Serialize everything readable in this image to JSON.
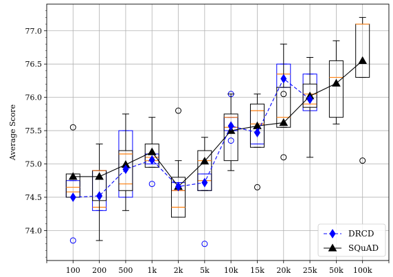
{
  "chart_data": {
    "type": "box",
    "categories": [
      "100",
      "200",
      "500",
      "1k",
      "2k",
      "5k",
      "10k",
      "15k",
      "20k",
      "25k",
      "50k",
      "100k"
    ],
    "ylabel": "Average Score",
    "xlabel": "",
    "ylim": [
      73.55,
      77.4
    ],
    "yticks": [
      "74.0",
      "74.5",
      "75.0",
      "75.5",
      "76.0",
      "76.5",
      "77.0"
    ],
    "grid": true,
    "legend_position": "bottom-right",
    "colors": {
      "DRCD": "#0000ff",
      "SQuAD": "#000000",
      "median": "#ff7f0e",
      "grid": "#b0b0b0"
    },
    "series": [
      {
        "name": "DRCD",
        "style": "dashed",
        "marker": "diamond",
        "mean": [
          74.5,
          74.52,
          74.92,
          75.06,
          74.66,
          74.72,
          75.57,
          75.47,
          76.28,
          75.97,
          null,
          null
        ],
        "box": [
          {
            "whislo": 74.5,
            "q1": 74.5,
            "med": 74.58,
            "q3": 74.75,
            "whishi": 74.75,
            "fliers": [
              73.85
            ]
          },
          {
            "whislo": 74.3,
            "q1": 74.3,
            "med": 74.35,
            "q3": 74.9,
            "whishi": 74.9,
            "fliers": []
          },
          {
            "whislo": 74.5,
            "q1": 74.5,
            "med": 74.7,
            "q3": 75.5,
            "whishi": 75.5,
            "fliers": []
          },
          {
            "whislo": 75.0,
            "q1": 75.0,
            "med": 75.1,
            "q3": 75.15,
            "whishi": 75.15,
            "fliers": [
              74.7
            ]
          },
          {
            "whislo": 74.6,
            "q1": 74.6,
            "med": 74.6,
            "q3": 74.72,
            "whishi": 74.72,
            "fliers": []
          },
          {
            "whislo": 74.6,
            "q1": 74.6,
            "med": 74.75,
            "q3": 74.85,
            "whishi": 74.85,
            "fliers": [
              73.8
            ]
          },
          {
            "whislo": 75.5,
            "q1": 75.5,
            "med": 75.55,
            "q3": 75.7,
            "whishi": 75.7,
            "fliers": [
              75.35,
              76.05
            ]
          },
          {
            "whislo": 75.3,
            "q1": 75.3,
            "med": 75.8,
            "q3": 75.8,
            "whishi": 75.8,
            "fliers": []
          },
          {
            "whislo": 76.15,
            "q1": 76.15,
            "med": 76.35,
            "q3": 76.5,
            "whishi": 76.5,
            "fliers": []
          },
          {
            "whislo": 75.8,
            "q1": 75.8,
            "med": 75.9,
            "q3": 76.35,
            "whishi": 76.35,
            "fliers": []
          },
          null,
          null
        ]
      },
      {
        "name": "SQuAD",
        "style": "solid",
        "marker": "triangle",
        "mean": [
          74.81,
          74.81,
          74.99,
          75.18,
          74.66,
          75.04,
          75.5,
          75.57,
          75.62,
          76.02,
          76.21,
          76.55
        ],
        "box": [
          {
            "whislo": 74.5,
            "q1": 74.5,
            "med": 74.65,
            "q3": 74.85,
            "whishi": 74.85,
            "fliers": [
              75.55
            ]
          },
          {
            "whislo": 73.85,
            "q1": 74.45,
            "med": 74.9,
            "q3": 74.9,
            "whishi": 75.3,
            "fliers": []
          },
          {
            "whislo": 74.3,
            "q1": 74.6,
            "med": 75.15,
            "q3": 75.2,
            "whishi": 75.75,
            "fliers": []
          },
          {
            "whislo": 74.95,
            "q1": 74.95,
            "med": 75.05,
            "q3": 75.3,
            "whishi": 75.7,
            "fliers": []
          },
          {
            "whislo": 74.2,
            "q1": 74.2,
            "med": 74.35,
            "q3": 74.8,
            "whishi": 75.05,
            "fliers": [
              75.8
            ]
          },
          {
            "whislo": 74.6,
            "q1": 74.6,
            "med": 75.05,
            "q3": 75.2,
            "whishi": 75.4,
            "fliers": []
          },
          {
            "whislo": 74.9,
            "q1": 75.05,
            "med": 75.7,
            "q3": 75.75,
            "whishi": 76.05,
            "fliers": []
          },
          {
            "whislo": 75.25,
            "q1": 75.25,
            "med": 75.6,
            "q3": 75.9,
            "whishi": 76.05,
            "fliers": [
              74.65
            ]
          },
          {
            "whislo": 75.55,
            "q1": 75.55,
            "med": 75.7,
            "q3": 76.15,
            "whishi": 76.8,
            "fliers": [
              75.1,
              76.05
            ]
          },
          {
            "whislo": 75.1,
            "q1": 75.85,
            "med": 76.05,
            "q3": 76.2,
            "whishi": 76.6,
            "fliers": []
          },
          {
            "whislo": 75.6,
            "q1": 75.7,
            "med": 76.3,
            "q3": 76.55,
            "whishi": 76.85,
            "fliers": []
          },
          {
            "whislo": 76.3,
            "q1": 76.3,
            "med": 77.1,
            "q3": 77.1,
            "whishi": 77.2,
            "fliers": [
              75.05
            ]
          }
        ]
      }
    ]
  }
}
